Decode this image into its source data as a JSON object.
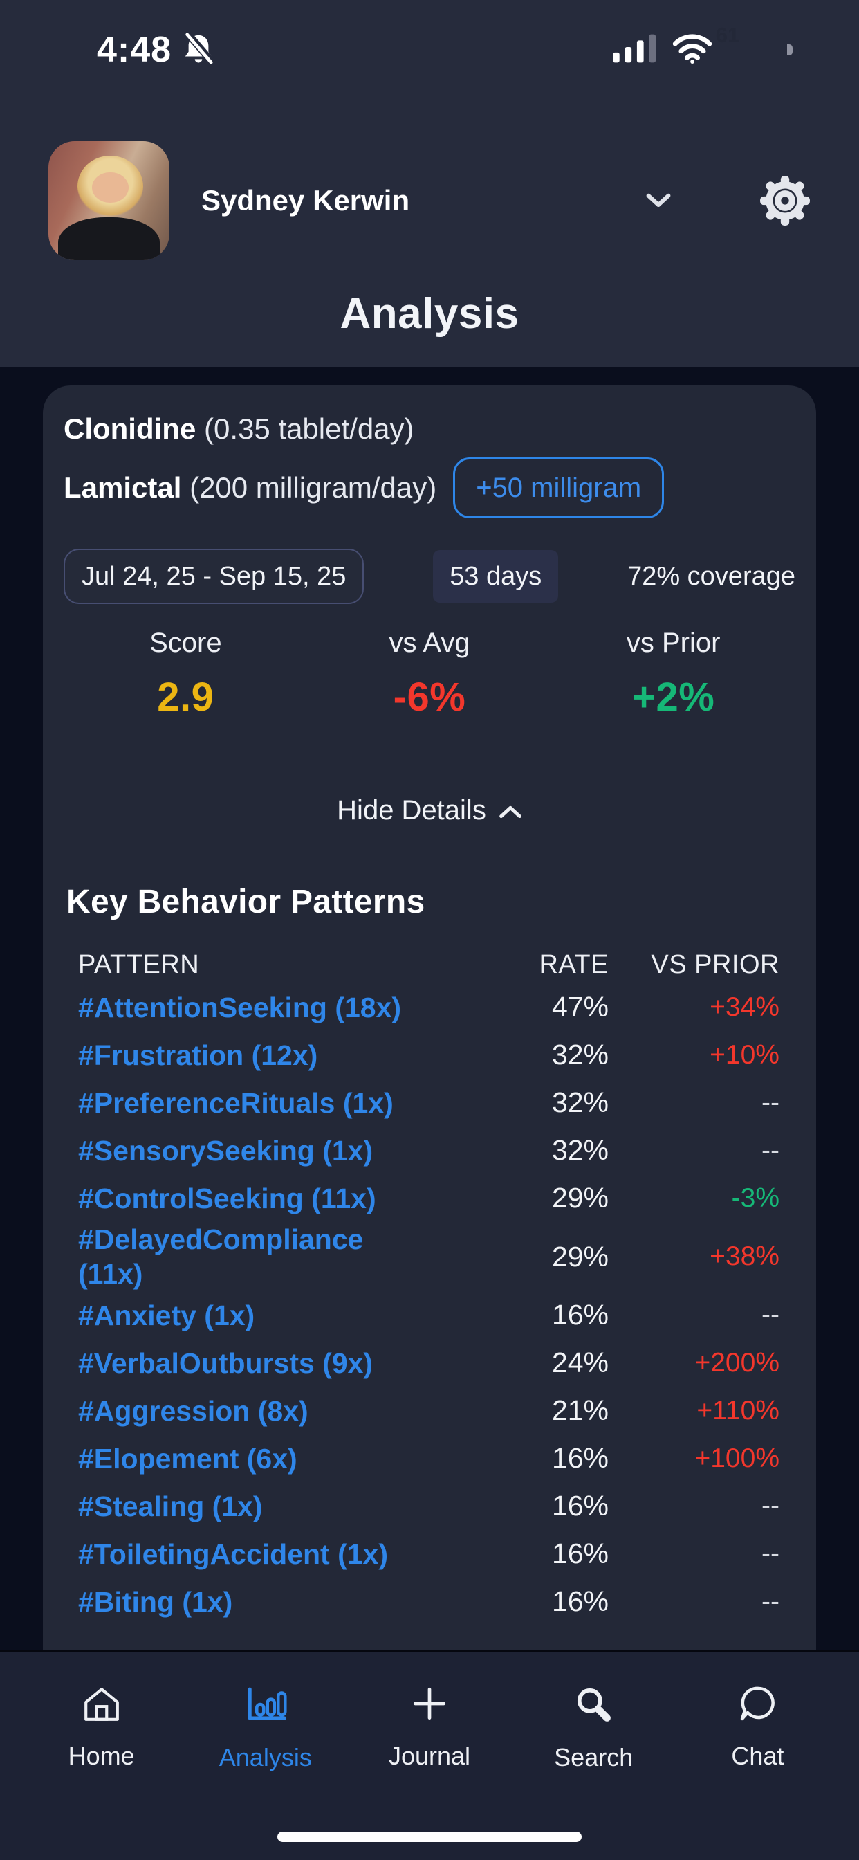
{
  "colors": {
    "accent_blue": "#2e86e8",
    "score_yellow": "#ecb613",
    "negative_red": "#f3372c",
    "positive_green": "#16b877",
    "muted_gray": "#d9dce3"
  },
  "status_bar": {
    "time": "4:48",
    "battery_level": "61"
  },
  "header": {
    "profile_name": "Sydney Kerwin",
    "screen_title": "Analysis"
  },
  "medications": {
    "line1": {
      "name": "Clonidine",
      "dose": "(0.35 tablet/day)"
    },
    "line2": {
      "name": "Lamictal",
      "dose": "(200 milligram/day)",
      "change_button": "+50 milligram"
    }
  },
  "period": {
    "date_range": "Jul 24, 25 - Sep 15, 25",
    "days": "53 days",
    "coverage": "72% coverage"
  },
  "stats": [
    {
      "label": "Score",
      "value": "2.9",
      "color": "#ecb613"
    },
    {
      "label": "vs Avg",
      "value": "-6%",
      "color": "#f3372c"
    },
    {
      "label": "vs Prior",
      "value": "+2%",
      "color": "#16b877"
    }
  ],
  "details_toggle": {
    "label": "Hide Details"
  },
  "patterns": {
    "heading": "Key Behavior Patterns",
    "columns": {
      "pattern": "PATTERN",
      "rate": "RATE",
      "vs_prior": "VS PRIOR"
    },
    "rows": [
      {
        "pattern": "#AttentionSeeking (18x)",
        "rate": "47%",
        "vs_prior": "+34%",
        "trend": "up"
      },
      {
        "pattern": "#Frustration (12x)",
        "rate": "32%",
        "vs_prior": "+10%",
        "trend": "up"
      },
      {
        "pattern": "#PreferenceRituals (1x)",
        "rate": "32%",
        "vs_prior": "--",
        "trend": "none"
      },
      {
        "pattern": "#SensorySeeking (1x)",
        "rate": "32%",
        "vs_prior": "--",
        "trend": "none"
      },
      {
        "pattern": "#ControlSeeking (11x)",
        "rate": "29%",
        "vs_prior": "-3%",
        "trend": "down"
      },
      {
        "pattern": "#DelayedCompliance (11x)",
        "rate": "29%",
        "vs_prior": "+38%",
        "trend": "up"
      },
      {
        "pattern": "#Anxiety (1x)",
        "rate": "16%",
        "vs_prior": "--",
        "trend": "none"
      },
      {
        "pattern": "#VerbalOutbursts (9x)",
        "rate": "24%",
        "vs_prior": "+200%",
        "trend": "up"
      },
      {
        "pattern": "#Aggression (8x)",
        "rate": "21%",
        "vs_prior": "+110%",
        "trend": "up"
      },
      {
        "pattern": "#Elopement (6x)",
        "rate": "16%",
        "vs_prior": "+100%",
        "trend": "up"
      },
      {
        "pattern": "#Stealing (1x)",
        "rate": "16%",
        "vs_prior": "--",
        "trend": "none"
      },
      {
        "pattern": "#ToiletingAccident (1x)",
        "rate": "16%",
        "vs_prior": "--",
        "trend": "none"
      },
      {
        "pattern": "#Biting (1x)",
        "rate": "16%",
        "vs_prior": "--",
        "trend": "none"
      }
    ]
  },
  "nav": {
    "items": [
      {
        "label": "Home",
        "icon": "home-icon",
        "active": false
      },
      {
        "label": "Analysis",
        "icon": "analysis-chart-icon",
        "active": true
      },
      {
        "label": "Journal",
        "icon": "plus-icon",
        "active": false
      },
      {
        "label": "Search",
        "icon": "search-icon",
        "active": false
      },
      {
        "label": "Chat",
        "icon": "chat-icon",
        "active": false
      }
    ]
  }
}
